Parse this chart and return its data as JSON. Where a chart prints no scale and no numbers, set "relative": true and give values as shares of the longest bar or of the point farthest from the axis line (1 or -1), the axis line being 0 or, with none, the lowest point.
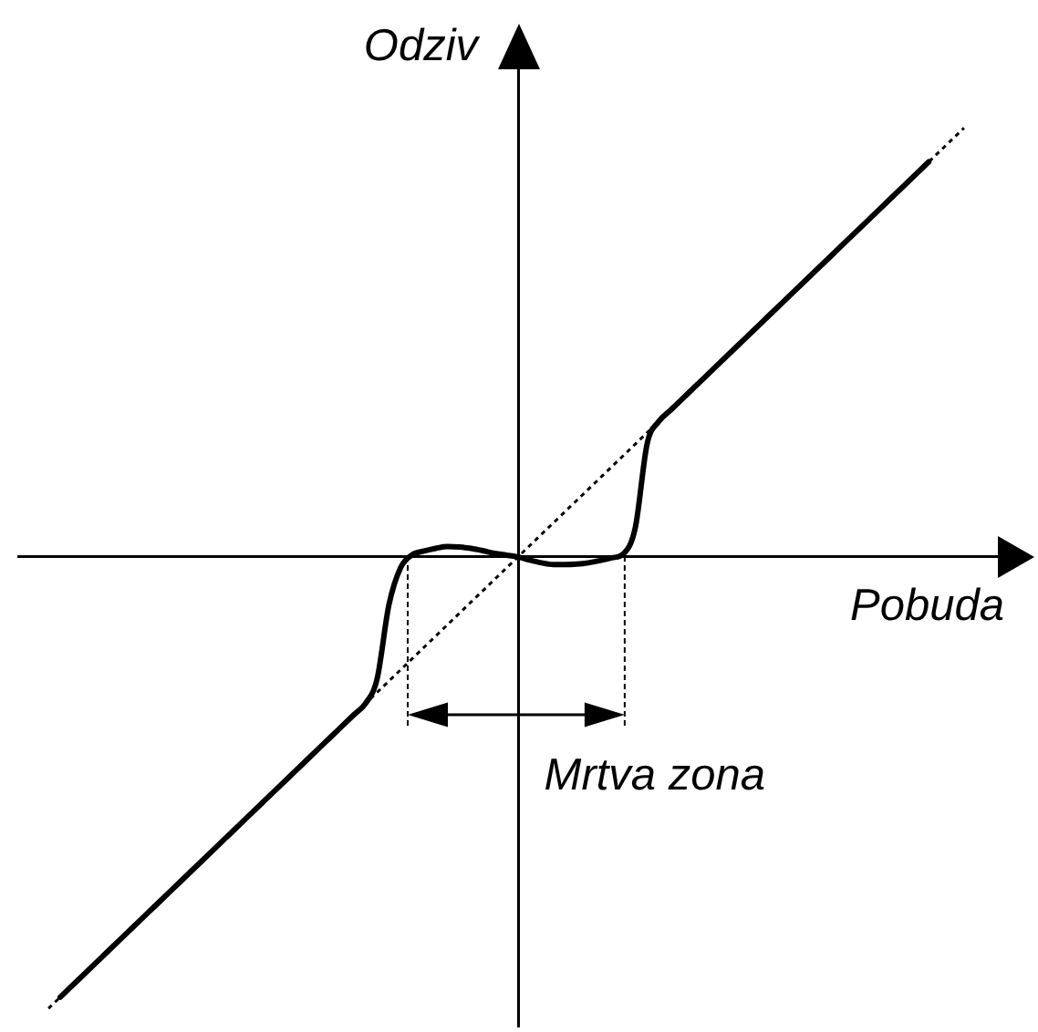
{
  "chart_data": {
    "type": "line",
    "relative": true,
    "xlabel": "Pobuda",
    "ylabel": "Odziv",
    "annotations": [
      "Mrtva zona"
    ],
    "categories": [
      null,
      null,
      null,
      null,
      null,
      null,
      null,
      null,
      null,
      null,
      null,
      null,
      null,
      null,
      null,
      null,
      null,
      null,
      null,
      null,
      null,
      null,
      null,
      null,
      null,
      null,
      null,
      null,
      null,
      null,
      null,
      null,
      null,
      null,
      null,
      null,
      null,
      null,
      null,
      null,
      null,
      null,
      null,
      null,
      null,
      null,
      null,
      null,
      null,
      null,
      null,
      null,
      null,
      null,
      null,
      null,
      null,
      null,
      null,
      null,
      null,
      null,
      null,
      null,
      null,
      null,
      null,
      null,
      null,
      null,
      null,
      null,
      null,
      null,
      null,
      null,
      null,
      null,
      null
    ],
    "series": [
      {
        "color": "#000000",
        "line_style": "solid",
        "values": [
          null,
          -0.975,
          -0.95,
          -0.925,
          -0.9,
          -0.875,
          -0.85,
          -0.825,
          -0.8,
          -0.775,
          -0.75,
          -0.725,
          -0.7,
          -0.675,
          -0.65,
          -0.625,
          -0.6,
          -0.575,
          -0.55,
          -0.525,
          -0.5,
          -0.475,
          -0.45,
          -0.425,
          -0.4,
          -0.375,
          -0.35,
          -0.325,
          -0.27,
          -0.107,
          -0.024,
          0.005,
          0.013,
          0.019,
          0.023,
          0.022,
          0.019,
          0.014,
          0.008,
          0.004,
          0,
          -0.007,
          -0.013,
          -0.017,
          -0.017,
          -0.016,
          -0.013,
          -0.008,
          -0.002,
          0.007,
          0.065,
          0.25,
          0.3,
          0.325,
          0.35,
          0.375,
          0.4,
          0.425,
          0.45,
          0.475,
          0.5,
          0.525,
          0.55,
          0.575,
          0.6,
          0.625,
          0.65,
          0.675,
          0.7,
          0.725,
          0.75,
          0.775,
          0.8,
          0.825,
          0.85,
          0.875,
          null,
          null,
          null
        ]
      },
      {
        "color": "#000000",
        "line_style": "dotted",
        "values": [
          -1,
          -0.975,
          -0.95,
          -0.925,
          -0.9,
          -0.875,
          -0.85,
          -0.825,
          -0.8,
          -0.775,
          -0.75,
          -0.725,
          -0.7,
          -0.675,
          -0.65,
          -0.625,
          -0.6,
          -0.575,
          -0.55,
          -0.525,
          -0.5,
          -0.475,
          -0.45,
          -0.425,
          -0.4,
          -0.375,
          -0.35,
          -0.325,
          -0.3,
          -0.275,
          -0.25,
          -0.225,
          -0.2,
          -0.175,
          -0.15,
          -0.125,
          -0.1,
          -0.075,
          -0.05,
          -0.025,
          0,
          0.025,
          0.05,
          0.075,
          0.1,
          0.125,
          0.15,
          0.175,
          0.2,
          0.225,
          0.25,
          0.275,
          0.3,
          0.325,
          0.35,
          0.375,
          0.4,
          0.425,
          0.45,
          0.475,
          0.5,
          0.525,
          0.55,
          0.575,
          0.6,
          0.625,
          0.65,
          0.675,
          0.7,
          0.725,
          0.75,
          0.775,
          0.8,
          0.825,
          0.85,
          0.875,
          0.9,
          0.925,
          0.95
        ]
      }
    ]
  }
}
